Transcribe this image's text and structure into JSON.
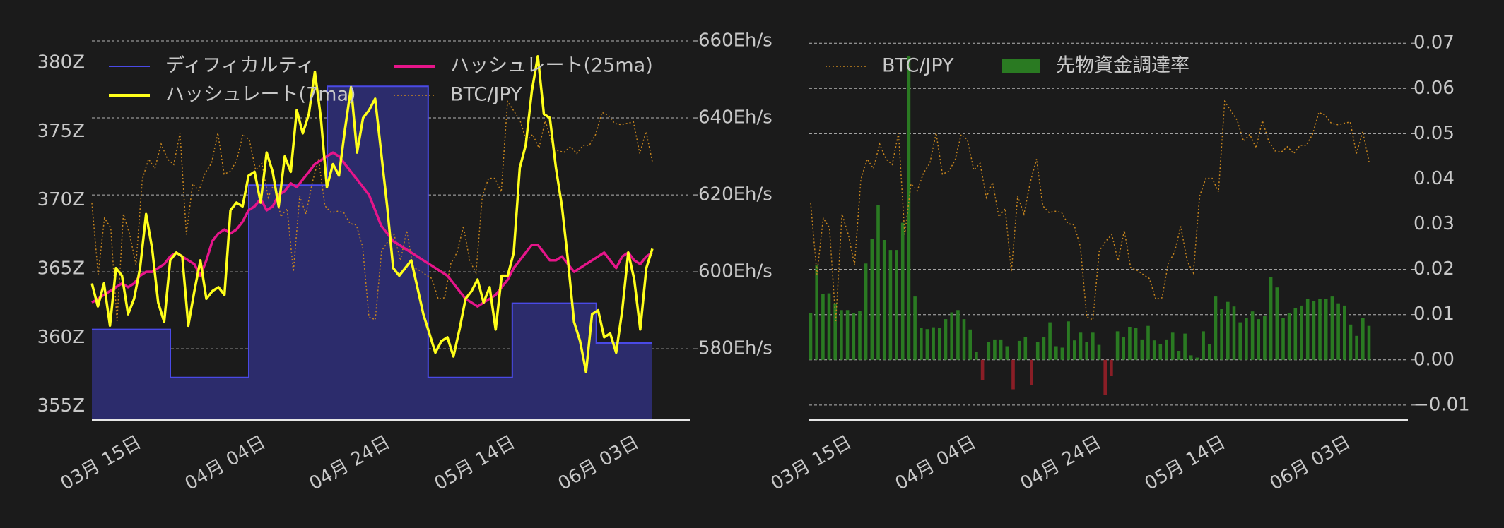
{
  "colors": {
    "background": "#1b1b1b",
    "text": "#c8c8c8",
    "grid": "#cfcfcf",
    "axis": "#e6e6e6",
    "difficulty_fill": "#2c2c6c",
    "difficulty_line": "#4a4ae6",
    "hashrate_7ma": "#ffff1a",
    "hashrate_25ma": "#e6158a",
    "btc_jpy": "#c8861e",
    "funding_positive": "#2a7a22",
    "funding_negative": "#8a1e26"
  },
  "chart_data": [
    {
      "type": "line",
      "x_tick_labels": [
        "03月 15日",
        "04月 04日",
        "04月 24日",
        "05月 14日",
        "06月 03日"
      ],
      "left_axis": {
        "ticks": [
          "380Z",
          "375Z",
          "370Z",
          "365Z",
          "360Z",
          "355Z"
        ],
        "tick_values": [
          380,
          375,
          370,
          365,
          360,
          355
        ],
        "range": [
          354,
          381.6
        ]
      },
      "right_axis": {
        "ticks": [
          "660Eh/s",
          "640Eh/s",
          "620Eh/s",
          "600Eh/s",
          "580Eh/s"
        ],
        "tick_values": [
          660,
          640,
          620,
          600,
          580
        ],
        "range": [
          561.5,
          660
        ]
      },
      "grid": true,
      "legend": {
        "placement": "top",
        "entries": [
          "ディフィカルティ",
          "ハッシュレート(25ma)",
          "ハッシュレート(7ma)",
          "BTC/JPY"
        ]
      },
      "series": [
        {
          "name": "ディフィカルティ",
          "kind": "step-area",
          "axis": "left",
          "steps": [
            [
              0,
              360.6
            ],
            [
              14,
              357.1
            ],
            [
              28,
              371.1
            ],
            [
              42,
              378.3
            ],
            [
              60,
              357.1
            ],
            [
              75,
              362.5
            ],
            [
              90,
              359.6
            ],
            [
              100,
              359.6
            ]
          ]
        },
        {
          "name": "ハッシュレート(7ma)",
          "kind": "line",
          "axis": "right",
          "values": [
            597,
            591,
            597,
            586,
            601,
            599,
            589,
            593,
            601,
            615,
            606,
            592,
            587,
            603,
            605,
            604,
            586,
            595,
            603,
            593,
            595,
            596,
            594,
            616,
            618,
            617,
            625,
            626,
            618,
            631,
            626,
            617,
            630,
            626,
            642,
            636,
            641,
            652,
            640,
            622,
            628,
            625,
            637,
            648,
            631,
            640,
            642,
            645,
            631,
            617,
            601,
            599,
            601,
            603,
            596,
            589,
            584,
            579,
            582,
            583,
            578,
            585,
            593,
            595,
            598,
            592,
            596,
            585,
            599,
            599,
            605,
            627,
            633,
            647,
            656,
            641,
            640,
            627,
            617,
            603,
            587,
            582,
            574,
            589,
            590,
            583,
            584,
            579,
            590,
            605,
            598,
            585,
            601,
            606
          ]
        },
        {
          "name": "ハッシュレート(25ma)",
          "kind": "line",
          "axis": "right",
          "values": [
            592,
            593,
            594,
            595,
            596,
            597,
            596,
            597,
            599,
            600,
            600,
            601,
            602,
            604,
            605,
            604,
            603,
            602,
            599,
            603,
            608,
            610,
            611,
            610,
            611,
            613,
            616,
            617,
            619,
            616,
            617,
            620,
            621,
            623,
            622,
            624,
            626,
            628,
            629,
            630,
            631,
            630,
            628,
            626,
            624,
            622,
            620,
            616,
            612,
            610,
            608,
            607,
            606,
            605,
            604,
            603,
            602,
            601,
            600,
            599,
            597,
            595,
            593,
            592,
            591,
            592,
            593,
            594,
            596,
            598,
            601,
            603,
            605,
            607,
            607,
            605,
            603,
            603,
            604,
            602,
            600,
            601,
            602,
            603,
            604,
            605,
            603,
            601,
            604,
            605,
            603,
            602,
            604,
            605
          ]
        },
        {
          "name": "BTC/JPY",
          "kind": "dotted-line",
          "axis": "left",
          "values": [
            369.8,
            364.6,
            368.7,
            368.0,
            361.2,
            369.0,
            367.5,
            365.3,
            371.5,
            373.0,
            372.3,
            374.1,
            373.0,
            372.6,
            374.9,
            367.5,
            371.2,
            370.7,
            372.0,
            372.7,
            374.9,
            371.9,
            372.1,
            372.9,
            374.8,
            374.4,
            372.2,
            372.7,
            370.2,
            371.3,
            368.8,
            369.4,
            364.8,
            370.3,
            369.0,
            371.3,
            373.0,
            369.6,
            369.1,
            369.2,
            369.1,
            368.3,
            368.2,
            366.6,
            361.5,
            361.3,
            366.3,
            367.0,
            367.5,
            365.6,
            367.8,
            365.1,
            364.9,
            364.6,
            364.3,
            362.8,
            362.9,
            365.4,
            366.2,
            368.1,
            365.6,
            364.7,
            370.3,
            371.6,
            371.6,
            370.6,
            377.2,
            376.5,
            375.8,
            374.3,
            374.8,
            373.8,
            375.8,
            374.3,
            373.6,
            373.5,
            373.9,
            373.4,
            374.0,
            374.0,
            374.8,
            376.4,
            376.2,
            375.6,
            375.5,
            375.6,
            375.7,
            373.4,
            375.0,
            372.8
          ]
        }
      ]
    },
    {
      "type": "bar",
      "x_tick_labels": [
        "03月 15日",
        "04月 04日",
        "04月 24日",
        "05月 14日",
        "06月 03日"
      ],
      "right_axis": {
        "ticks": [
          "0.07",
          "0.06",
          "0.05",
          "0.04",
          "0.03",
          "0.02",
          "0.01",
          "0.00",
          "−0.01"
        ],
        "tick_values": [
          0.07,
          0.06,
          0.05,
          0.04,
          0.03,
          0.02,
          0.01,
          0.0,
          -0.01
        ],
        "range": [
          -0.0133,
          0.0705
        ]
      },
      "grid": true,
      "legend": {
        "placement": "top-left",
        "entries": [
          "BTC/JPY",
          "先物資金調達率"
        ]
      },
      "series": [
        {
          "name": "先物資金調達率",
          "kind": "bar",
          "values": [
            0.0103,
            0.021,
            0.0145,
            0.0147,
            0.0125,
            0.011,
            0.011,
            0.0103,
            0.0108,
            0.0213,
            0.0268,
            0.0343,
            0.0265,
            0.0243,
            0.0243,
            0.0303,
            0.0672,
            0.014,
            0.007,
            0.0068,
            0.0072,
            0.007,
            0.009,
            0.0105,
            0.011,
            0.009,
            0.0067,
            0.0018,
            -0.0045,
            0.004,
            0.0045,
            0.0045,
            0.003,
            -0.0065,
            0.0042,
            0.005,
            -0.0055,
            0.004,
            0.005,
            0.0083,
            0.003,
            0.0027,
            0.0085,
            0.0043,
            0.006,
            0.004,
            0.006,
            0.0033,
            -0.0077,
            -0.0035,
            0.0063,
            0.005,
            0.0073,
            0.007,
            0.0045,
            0.0075,
            0.0043,
            0.0035,
            0.0045,
            0.006,
            0.002,
            0.0058,
            0.001,
            0.0005,
            0.0063,
            0.0035,
            0.014,
            0.0112,
            0.0128,
            0.0118,
            0.0083,
            0.0093,
            0.0107,
            0.009,
            0.0098,
            0.0183,
            0.016,
            0.0093,
            0.0103,
            0.0115,
            0.012,
            0.0135,
            0.013,
            0.0135,
            0.0135,
            0.014,
            0.0125,
            0.012,
            0.0078,
            0.0053,
            0.0093,
            0.0075
          ]
        },
        {
          "name": "BTC/JPY",
          "kind": "dotted-line",
          "values": [
            369.8,
            364.6,
            368.7,
            368.0,
            361.2,
            369.0,
            367.5,
            365.3,
            371.5,
            373.0,
            372.3,
            374.1,
            373.0,
            372.6,
            374.9,
            367.5,
            371.2,
            370.7,
            372.0,
            372.7,
            374.9,
            371.9,
            372.1,
            372.9,
            374.8,
            374.4,
            372.2,
            372.7,
            370.2,
            371.3,
            368.8,
            369.4,
            364.8,
            370.3,
            369.0,
            371.3,
            373.0,
            369.6,
            369.1,
            369.2,
            369.1,
            368.3,
            368.2,
            366.6,
            361.5,
            361.3,
            366.3,
            367.0,
            367.5,
            365.6,
            367.8,
            365.1,
            364.9,
            364.6,
            364.3,
            362.8,
            362.9,
            365.4,
            366.2,
            368.1,
            365.6,
            364.7,
            370.3,
            371.6,
            371.6,
            370.6,
            377.2,
            376.5,
            375.8,
            374.3,
            374.8,
            373.8,
            375.8,
            374.3,
            373.6,
            373.5,
            373.9,
            373.4,
            374.0,
            374.0,
            374.8,
            376.4,
            376.2,
            375.6,
            375.5,
            375.6,
            375.7,
            373.4,
            375.0,
            372.8
          ]
        }
      ]
    }
  ]
}
